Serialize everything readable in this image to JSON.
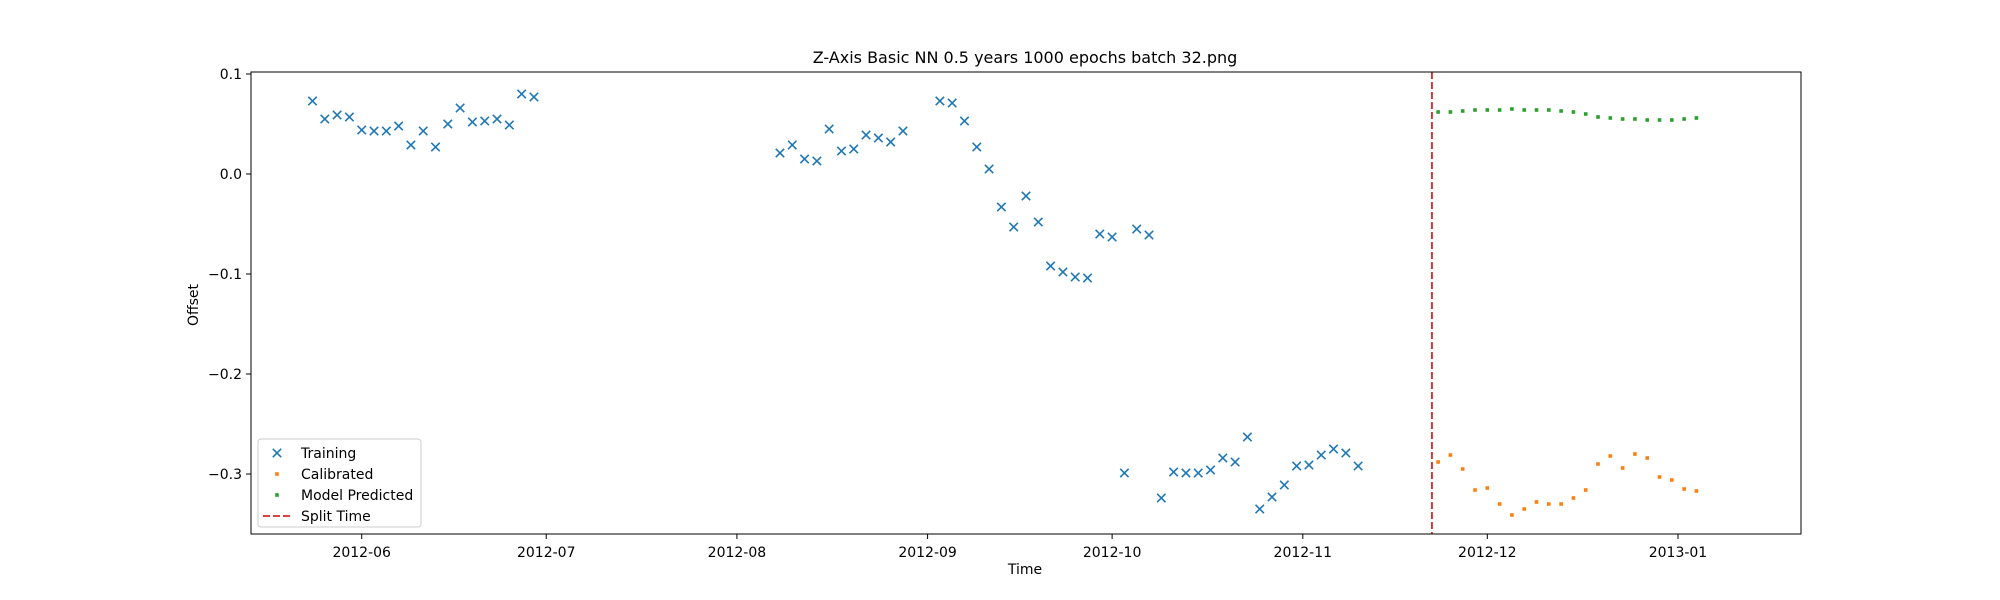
{
  "chart_data": {
    "type": "scatter",
    "title": "Z-Axis Basic NN 0.5 years 1000 epochs batch 32.png",
    "xlabel": "Time",
    "ylabel": "Offset",
    "xlim": [
      "2012-05-14",
      "2013-01-21"
    ],
    "ylim": [
      -0.36,
      0.102
    ],
    "xticks": [
      "2012-06",
      "2012-07",
      "2012-08",
      "2012-09",
      "2012-10",
      "2012-11",
      "2012-12",
      "2013-01"
    ],
    "yticks": [
      0.1,
      0.0,
      -0.1,
      -0.2,
      -0.3
    ],
    "ytick_labels": [
      "0.1",
      "0.0",
      "−0.1",
      "−0.2",
      "−0.3"
    ],
    "grid": false,
    "legend_position": "lower-left",
    "split_time": "2012-11-22",
    "series": [
      {
        "name": "Training",
        "marker": "x",
        "color": "#1f77b4",
        "points": [
          [
            "2012-05-24",
            0.073
          ],
          [
            "2012-05-26",
            0.055
          ],
          [
            "2012-05-28",
            0.059
          ],
          [
            "2012-05-30",
            0.057
          ],
          [
            "2012-06-01",
            0.044
          ],
          [
            "2012-06-03",
            0.043
          ],
          [
            "2012-06-05",
            0.043
          ],
          [
            "2012-06-07",
            0.048
          ],
          [
            "2012-06-09",
            0.029
          ],
          [
            "2012-06-11",
            0.043
          ],
          [
            "2012-06-13",
            0.027
          ],
          [
            "2012-06-15",
            0.05
          ],
          [
            "2012-06-17",
            0.066
          ],
          [
            "2012-06-19",
            0.052
          ],
          [
            "2012-06-21",
            0.053
          ],
          [
            "2012-06-23",
            0.055
          ],
          [
            "2012-06-25",
            0.049
          ],
          [
            "2012-06-27",
            0.08
          ],
          [
            "2012-06-29",
            0.077
          ],
          [
            "2012-08-08",
            0.021
          ],
          [
            "2012-08-10",
            0.029
          ],
          [
            "2012-08-12",
            0.015
          ],
          [
            "2012-08-14",
            0.013
          ],
          [
            "2012-08-16",
            0.045
          ],
          [
            "2012-08-18",
            0.023
          ],
          [
            "2012-08-20",
            0.025
          ],
          [
            "2012-08-22",
            0.039
          ],
          [
            "2012-08-24",
            0.036
          ],
          [
            "2012-08-26",
            0.032
          ],
          [
            "2012-08-28",
            0.043
          ],
          [
            "2012-09-03",
            0.073
          ],
          [
            "2012-09-05",
            0.071
          ],
          [
            "2012-09-07",
            0.053
          ],
          [
            "2012-09-09",
            0.027
          ],
          [
            "2012-09-11",
            0.005
          ],
          [
            "2012-09-13",
            -0.033
          ],
          [
            "2012-09-15",
            -0.053
          ],
          [
            "2012-09-17",
            -0.022
          ],
          [
            "2012-09-19",
            -0.048
          ],
          [
            "2012-09-21",
            -0.092
          ],
          [
            "2012-09-23",
            -0.098
          ],
          [
            "2012-09-25",
            -0.103
          ],
          [
            "2012-09-27",
            -0.104
          ],
          [
            "2012-09-29",
            -0.06
          ],
          [
            "2012-10-01",
            -0.063
          ],
          [
            "2012-10-03",
            -0.299
          ],
          [
            "2012-10-05",
            -0.055
          ],
          [
            "2012-10-07",
            -0.061
          ],
          [
            "2012-10-09",
            -0.324
          ],
          [
            "2012-10-11",
            -0.298
          ],
          [
            "2012-10-13",
            -0.299
          ],
          [
            "2012-10-15",
            -0.299
          ],
          [
            "2012-10-17",
            -0.296
          ],
          [
            "2012-10-19",
            -0.284
          ],
          [
            "2012-10-21",
            -0.288
          ],
          [
            "2012-10-23",
            -0.263
          ],
          [
            "2012-10-25",
            -0.335
          ],
          [
            "2012-10-27",
            -0.323
          ],
          [
            "2012-10-29",
            -0.311
          ],
          [
            "2012-10-31",
            -0.292
          ],
          [
            "2012-11-02",
            -0.291
          ],
          [
            "2012-11-04",
            -0.281
          ],
          [
            "2012-11-06",
            -0.275
          ],
          [
            "2012-11-08",
            -0.279
          ],
          [
            "2012-11-10",
            -0.292
          ]
        ]
      },
      {
        "name": "Calibrated",
        "marker": "s",
        "color": "#ff7f0e",
        "points": [
          [
            "2012-11-23",
            -0.288
          ],
          [
            "2012-11-25",
            -0.281
          ],
          [
            "2012-11-27",
            -0.295
          ],
          [
            "2012-11-29",
            -0.316
          ],
          [
            "2012-12-01",
            -0.314
          ],
          [
            "2012-12-03",
            -0.33
          ],
          [
            "2012-12-05",
            -0.341
          ],
          [
            "2012-12-07",
            -0.335
          ],
          [
            "2012-12-09",
            -0.328
          ],
          [
            "2012-12-11",
            -0.33
          ],
          [
            "2012-12-13",
            -0.33
          ],
          [
            "2012-12-15",
            -0.324
          ],
          [
            "2012-12-17",
            -0.316
          ],
          [
            "2012-12-19",
            -0.29
          ],
          [
            "2012-12-21",
            -0.282
          ],
          [
            "2012-12-23",
            -0.294
          ],
          [
            "2012-12-25",
            -0.28
          ],
          [
            "2012-12-27",
            -0.284
          ],
          [
            "2012-12-29",
            -0.303
          ],
          [
            "2012-12-31",
            -0.306
          ],
          [
            "2013-01-02",
            -0.315
          ],
          [
            "2013-01-04",
            -0.317
          ]
        ]
      },
      {
        "name": "Model Predicted",
        "marker": "s",
        "color": "#2ca02c",
        "points": [
          [
            "2012-11-23",
            0.062
          ],
          [
            "2012-11-25",
            0.062
          ],
          [
            "2012-11-27",
            0.063
          ],
          [
            "2012-11-29",
            0.064
          ],
          [
            "2012-12-01",
            0.064
          ],
          [
            "2012-12-03",
            0.064
          ],
          [
            "2012-12-05",
            0.065
          ],
          [
            "2012-12-07",
            0.064
          ],
          [
            "2012-12-09",
            0.064
          ],
          [
            "2012-12-11",
            0.064
          ],
          [
            "2012-12-13",
            0.063
          ],
          [
            "2012-12-15",
            0.062
          ],
          [
            "2012-12-17",
            0.06
          ],
          [
            "2012-12-19",
            0.057
          ],
          [
            "2012-12-21",
            0.056
          ],
          [
            "2012-12-23",
            0.055
          ],
          [
            "2012-12-25",
            0.055
          ],
          [
            "2012-12-27",
            0.054
          ],
          [
            "2012-12-29",
            0.054
          ],
          [
            "2012-12-31",
            0.054
          ],
          [
            "2013-01-02",
            0.055
          ],
          [
            "2013-01-04",
            0.056
          ]
        ]
      },
      {
        "name": "Split Time",
        "marker": "dashed-line",
        "color": "#d62728"
      }
    ]
  }
}
